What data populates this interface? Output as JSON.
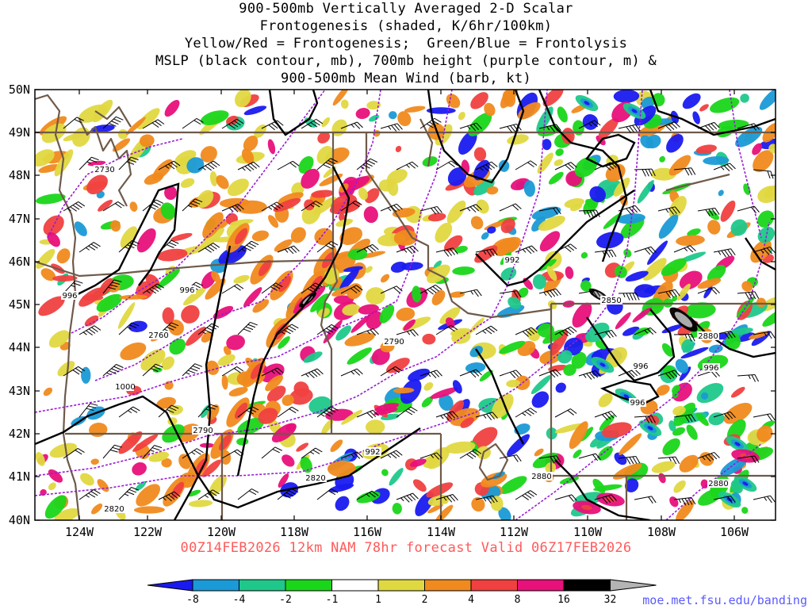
{
  "title": {
    "lines": [
      "900-500mb Vertically Averaged 2-D Scalar",
      "Frontogenesis (shaded, K/6hr/100km)",
      "Yellow/Red = Frontogenesis;  Green/Blue = Frontolysis",
      "MSLP (black contour, mb), 700mb height (purple contour, m) &",
      "900-500mb Mean Wind (barb, kt)"
    ]
  },
  "map": {
    "lat_labels": [
      "50N",
      "49N",
      "48N",
      "47N",
      "46N",
      "45N",
      "44N",
      "43N",
      "42N",
      "41N",
      "40N"
    ],
    "lon_labels": [
      "124W",
      "122W",
      "120W",
      "118W",
      "116W",
      "114W",
      "112W",
      "110W",
      "108W",
      "106W"
    ],
    "mslp_labels": [
      "996",
      "996",
      "1000",
      "992",
      "992",
      "996",
      "996",
      "996"
    ],
    "height_labels": [
      "2730",
      "2760",
      "2790",
      "2790",
      "2820",
      "2820",
      "2850",
      "2880",
      "2880",
      "2880"
    ],
    "colors": {
      "border": "#6e5a4a",
      "mslp": "#000000",
      "height": "#9a1ad6",
      "frontogenesis_weak": "#e0d840",
      "frontogenesis_mod": "#f08a1e",
      "frontogenesis_strong": "#f04040",
      "frontogenesis_very": "#e8107a",
      "frontolysis_weak": "#1ad61a",
      "frontolysis_mod": "#1fc88a",
      "frontolysis_strong": "#1a9ad6",
      "frontolysis_very": "#1a1af0"
    }
  },
  "valid_time": "00Z14FEB2026 12km NAM 78hr forecast Valid 06Z17FEB2026",
  "colorbar": {
    "labels": [
      "-8",
      "-4",
      "-2",
      "-1",
      "1",
      "2",
      "4",
      "8",
      "16",
      "32"
    ],
    "colors": [
      "#1a1af0",
      "#1a9ad6",
      "#1fc88a",
      "#1ad61a",
      "#ffffff",
      "#e0d840",
      "#f08a1e",
      "#f04040",
      "#e8107a",
      "#000000",
      "#b4b4b4"
    ]
  },
  "credit": "moe.met.fsu.edu/banding"
}
